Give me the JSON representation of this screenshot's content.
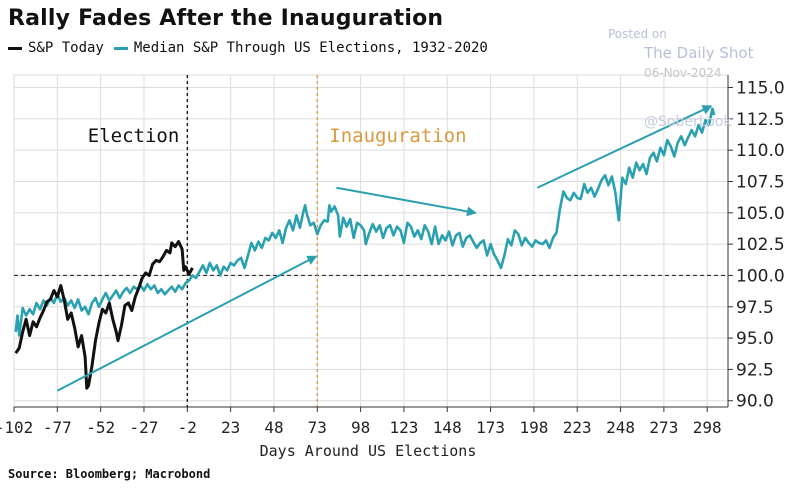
{
  "header": {
    "title": "Rally Fades After the Inauguration",
    "legend": [
      {
        "label": "S&P Today",
        "color": "#111111"
      },
      {
        "label": "Median S&P Through US Elections, 1932-2020",
        "color": "#2aa0b0"
      }
    ]
  },
  "watermark": {
    "line1": "Posted on",
    "line2": "The Daily Shot",
    "line3": "06-Nov-2024",
    "line4": "@SoberLook"
  },
  "source": "Source: Bloomberg; Macrobond",
  "chart_data": {
    "type": "line",
    "title": "Rally Fades After the Inauguration",
    "xlabel": "Days Around US Elections",
    "ylabel": "",
    "xlim": [
      -102,
      310
    ],
    "ylim": [
      89.5,
      116
    ],
    "x_ticks": [
      -102,
      -77,
      -52,
      -27,
      -2,
      23,
      48,
      73,
      98,
      123,
      148,
      173,
      198,
      223,
      248,
      273,
      298
    ],
    "y_ticks": [
      90.0,
      92.5,
      95.0,
      97.5,
      100.0,
      102.5,
      105.0,
      107.5,
      110.0,
      112.5,
      115.0
    ],
    "y_axis_side": "right",
    "grid": true,
    "reference_line": {
      "y": 100.0,
      "style": "dashed"
    },
    "annotations": [
      {
        "text": "Election",
        "x": -2,
        "color": "#111111"
      },
      {
        "text": "Inauguration",
        "x": 73,
        "color": "#d99a3e"
      }
    ],
    "arrows": [
      {
        "from": [
          -77,
          90.8
        ],
        "to": [
          72,
          101.5
        ]
      },
      {
        "from": [
          84,
          107
        ],
        "to": [
          164,
          105
        ]
      },
      {
        "from": [
          200,
          107
        ],
        "to": [
          300,
          113.5
        ]
      }
    ],
    "series": [
      {
        "name": "S&P Today",
        "color": "#111111",
        "points": [
          [
            -101,
            93.8
          ],
          [
            -99,
            94.2
          ],
          [
            -97,
            95.5
          ],
          [
            -95,
            96.5
          ],
          [
            -93,
            95.2
          ],
          [
            -91,
            96.3
          ],
          [
            -89,
            95.9
          ],
          [
            -87,
            96.6
          ],
          [
            -85,
            97.2
          ],
          [
            -83,
            97.9
          ],
          [
            -81,
            98.1
          ],
          [
            -79,
            98.8
          ],
          [
            -77,
            98.3
          ],
          [
            -75,
            99.2
          ],
          [
            -73,
            98.0
          ],
          [
            -71,
            96.5
          ],
          [
            -69,
            97.0
          ],
          [
            -67,
            95.8
          ],
          [
            -65,
            94.3
          ],
          [
            -63,
            95.2
          ],
          [
            -61,
            93.5
          ],
          [
            -60,
            91.0
          ],
          [
            -59,
            91.2
          ],
          [
            -57,
            92.8
          ],
          [
            -55,
            94.8
          ],
          [
            -53,
            96.2
          ],
          [
            -51,
            97.3
          ],
          [
            -49,
            97.0
          ],
          [
            -47,
            97.8
          ],
          [
            -45,
            96.5
          ],
          [
            -43,
            95.5
          ],
          [
            -42,
            94.8
          ],
          [
            -40,
            96.0
          ],
          [
            -38,
            97.6
          ],
          [
            -36,
            97.8
          ],
          [
            -34,
            97.2
          ],
          [
            -32,
            98.3
          ],
          [
            -30,
            99.0
          ],
          [
            -28,
            99.8
          ],
          [
            -26,
            100.2
          ],
          [
            -24,
            100.0
          ],
          [
            -22,
            100.9
          ],
          [
            -20,
            101.2
          ],
          [
            -18,
            101.1
          ],
          [
            -16,
            101.5
          ],
          [
            -14,
            102.0
          ],
          [
            -12,
            101.8
          ],
          [
            -11,
            102.6
          ],
          [
            -9,
            102.3
          ],
          [
            -7,
            102.7
          ],
          [
            -5,
            102.1
          ],
          [
            -4,
            100.4
          ],
          [
            -3,
            100.7
          ],
          [
            -1,
            100.1
          ],
          [
            1,
            100.6
          ]
        ]
      },
      {
        "name": "Median S&P Through US Elections, 1932-2020",
        "color": "#2aa0b0",
        "points": [
          [
            -101,
            95.5
          ],
          [
            -100,
            96.8
          ],
          [
            -99,
            95.2
          ],
          [
            -97,
            97.4
          ],
          [
            -95,
            96.8
          ],
          [
            -93,
            97.3
          ],
          [
            -91,
            96.9
          ],
          [
            -89,
            97.8
          ],
          [
            -87,
            97.3
          ],
          [
            -85,
            98.0
          ],
          [
            -83,
            97.6
          ],
          [
            -81,
            98.2
          ],
          [
            -79,
            97.8
          ],
          [
            -77,
            98.5
          ],
          [
            -75,
            97.9
          ],
          [
            -73,
            98.2
          ],
          [
            -71,
            97.6
          ],
          [
            -69,
            98.0
          ],
          [
            -67,
            97.4
          ],
          [
            -65,
            98.1
          ],
          [
            -63,
            97.2
          ],
          [
            -61,
            97.5
          ],
          [
            -59,
            96.9
          ],
          [
            -57,
            97.8
          ],
          [
            -55,
            98.2
          ],
          [
            -53,
            97.5
          ],
          [
            -51,
            98.1
          ],
          [
            -49,
            98.6
          ],
          [
            -47,
            98.0
          ],
          [
            -45,
            98.4
          ],
          [
            -43,
            98.8
          ],
          [
            -41,
            98.2
          ],
          [
            -39,
            98.7
          ],
          [
            -37,
            99.0
          ],
          [
            -35,
            98.6
          ],
          [
            -33,
            99.1
          ],
          [
            -31,
            98.9
          ],
          [
            -29,
            99.2
          ],
          [
            -27,
            98.8
          ],
          [
            -25,
            99.3
          ],
          [
            -23,
            98.9
          ],
          [
            -21,
            99.2
          ],
          [
            -19,
            98.6
          ],
          [
            -17,
            98.9
          ],
          [
            -15,
            98.5
          ],
          [
            -13,
            98.8
          ],
          [
            -11,
            99.1
          ],
          [
            -9,
            98.7
          ],
          [
            -7,
            99.2
          ],
          [
            -5,
            98.9
          ],
          [
            -3,
            99.4
          ],
          [
            -1,
            99.6
          ],
          [
            1,
            100.0
          ],
          [
            3,
            99.8
          ],
          [
            5,
            100.3
          ],
          [
            7,
            100.8
          ],
          [
            9,
            100.2
          ],
          [
            11,
            101.0
          ],
          [
            13,
            100.4
          ],
          [
            15,
            100.8
          ],
          [
            17,
            100.0
          ],
          [
            19,
            100.7
          ],
          [
            21,
            100.4
          ],
          [
            23,
            101.0
          ],
          [
            25,
            100.8
          ],
          [
            27,
            101.2
          ],
          [
            29,
            101.4
          ],
          [
            31,
            100.6
          ],
          [
            33,
            101.6
          ],
          [
            35,
            102.6
          ],
          [
            37,
            102.0
          ],
          [
            39,
            102.7
          ],
          [
            41,
            102.2
          ],
          [
            43,
            103.0
          ],
          [
            45,
            102.8
          ],
          [
            47,
            103.4
          ],
          [
            49,
            103.0
          ],
          [
            51,
            103.6
          ],
          [
            53,
            102.6
          ],
          [
            55,
            103.8
          ],
          [
            57,
            104.4
          ],
          [
            59,
            103.6
          ],
          [
            61,
            104.8
          ],
          [
            63,
            103.8
          ],
          [
            65,
            105.1
          ],
          [
            66,
            105.6
          ],
          [
            67,
            104.9
          ],
          [
            69,
            104.0
          ],
          [
            71,
            104.2
          ],
          [
            73,
            103.3
          ],
          [
            75,
            104.0
          ],
          [
            77,
            104.4
          ],
          [
            79,
            104.3
          ],
          [
            80,
            105.6
          ],
          [
            81,
            105.1
          ],
          [
            83,
            105.5
          ],
          [
            85,
            104.8
          ],
          [
            86,
            103.1
          ],
          [
            88,
            104.6
          ],
          [
            90,
            103.9
          ],
          [
            92,
            104.5
          ],
          [
            94,
            103.0
          ],
          [
            96,
            104.2
          ],
          [
            98,
            104.0
          ],
          [
            100,
            103.6
          ],
          [
            101,
            102.5
          ],
          [
            103,
            103.4
          ],
          [
            105,
            104.1
          ],
          [
            107,
            103.5
          ],
          [
            109,
            104.0
          ],
          [
            111,
            103.0
          ],
          [
            113,
            103.8
          ],
          [
            115,
            104.0
          ],
          [
            117,
            103.2
          ],
          [
            119,
            103.9
          ],
          [
            121,
            103.6
          ],
          [
            123,
            102.6
          ],
          [
            125,
            104.2
          ],
          [
            127,
            103.9
          ],
          [
            129,
            103.1
          ],
          [
            131,
            103.6
          ],
          [
            133,
            102.9
          ],
          [
            135,
            104.0
          ],
          [
            137,
            103.5
          ],
          [
            139,
            102.5
          ],
          [
            141,
            103.9
          ],
          [
            143,
            102.5
          ],
          [
            145,
            103.2
          ],
          [
            147,
            102.8
          ],
          [
            149,
            103.5
          ],
          [
            151,
            102.4
          ],
          [
            153,
            103.2
          ],
          [
            155,
            103.4
          ],
          [
            157,
            102.3
          ],
          [
            159,
            103.0
          ],
          [
            161,
            103.2
          ],
          [
            163,
            102.7
          ],
          [
            165,
            102.2
          ],
          [
            167,
            102.6
          ],
          [
            169,
            102.8
          ],
          [
            171,
            101.6
          ],
          [
            173,
            102.5
          ],
          [
            175,
            101.7
          ],
          [
            177,
            101.2
          ],
          [
            179,
            100.6
          ],
          [
            181,
            101.6
          ],
          [
            183,
            102.9
          ],
          [
            185,
            102.4
          ],
          [
            187,
            103.6
          ],
          [
            189,
            103.3
          ],
          [
            191,
            102.4
          ],
          [
            193,
            103.0
          ],
          [
            195,
            102.6
          ],
          [
            197,
            102.3
          ],
          [
            199,
            102.8
          ],
          [
            201,
            102.6
          ],
          [
            203,
            102.5
          ],
          [
            205,
            102.8
          ],
          [
            207,
            102.2
          ],
          [
            209,
            103.0
          ],
          [
            211,
            103.4
          ],
          [
            213,
            105.3
          ],
          [
            215,
            106.7
          ],
          [
            217,
            106.2
          ],
          [
            219,
            106.0
          ],
          [
            221,
            106.6
          ],
          [
            223,
            106.2
          ],
          [
            225,
            106.1
          ],
          [
            227,
            107.3
          ],
          [
            229,
            106.6
          ],
          [
            231,
            107.0
          ],
          [
            233,
            106.3
          ],
          [
            235,
            106.9
          ],
          [
            237,
            107.6
          ],
          [
            239,
            108.0
          ],
          [
            241,
            107.2
          ],
          [
            243,
            107.9
          ],
          [
            245,
            106.6
          ],
          [
            247,
            104.4
          ],
          [
            249,
            107.8
          ],
          [
            251,
            107.3
          ],
          [
            253,
            108.6
          ],
          [
            255,
            107.8
          ],
          [
            257,
            109.0
          ],
          [
            259,
            108.4
          ],
          [
            261,
            108.9
          ],
          [
            263,
            108.1
          ],
          [
            265,
            109.4
          ],
          [
            267,
            109.8
          ],
          [
            269,
            109.1
          ],
          [
            271,
            110.2
          ],
          [
            273,
            109.6
          ],
          [
            275,
            110.8
          ],
          [
            277,
            110.3
          ],
          [
            279,
            109.5
          ],
          [
            281,
            110.6
          ],
          [
            283,
            111.1
          ],
          [
            285,
            110.4
          ],
          [
            287,
            111.0
          ],
          [
            289,
            111.6
          ],
          [
            291,
            111.1
          ],
          [
            293,
            112.0
          ],
          [
            295,
            111.4
          ],
          [
            297,
            112.4
          ],
          [
            299,
            112.0
          ],
          [
            301,
            113.3
          ],
          [
            302,
            112.8
          ]
        ]
      }
    ]
  }
}
